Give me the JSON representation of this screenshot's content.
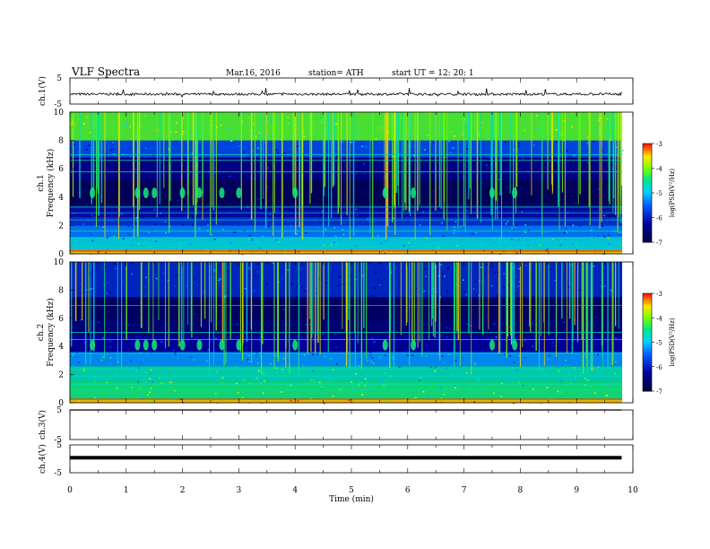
{
  "header": {
    "title": "VLF Spectra",
    "date": "Mar.16, 2016",
    "station": "station= ATH",
    "start": "start  UT =    12: 20: 1"
  },
  "colors": {
    "background": "#ffffff",
    "axis": "#000000",
    "spectrogram_low": "#000066",
    "spectrogram_mid": "#00c0ff",
    "spectrogram_high": "#c8ff00"
  },
  "chart_data": [
    {
      "type": "line",
      "panel": "ch1-waveform",
      "ylabel": "ch.1(V)",
      "ylim": [
        -5,
        5
      ],
      "y_ticks": [
        "5",
        "-5"
      ],
      "x": [
        0,
        1,
        2,
        3,
        4,
        5,
        6,
        7,
        8,
        9,
        9.8
      ],
      "values": [
        -1.2,
        -1.3,
        -1.1,
        -1.4,
        -1.0,
        -1.2,
        -1.3,
        -1.1,
        -1.2,
        -1.3,
        -1.4
      ]
    },
    {
      "type": "heatmap",
      "panel": "ch1-spectrogram",
      "ylabel_top": "ch.1",
      "ylabel": "Frequency (kHz)",
      "ylim": [
        0,
        10
      ],
      "y_ticks": [
        "0",
        "2",
        "4",
        "6",
        "8",
        "10"
      ],
      "colorbar": {
        "label": "log(PSD(V²/Hz)",
        "range": [
          -7,
          -3
        ],
        "ticks": [
          "-3",
          "-4",
          "-5",
          "-6",
          "-7"
        ]
      }
    },
    {
      "type": "heatmap",
      "panel": "ch2-spectrogram",
      "ylabel_top": "ch.2",
      "ylabel": "Frequency (kHz)",
      "ylim": [
        0,
        10
      ],
      "y_ticks": [
        "0",
        "2",
        "4",
        "6",
        "8",
        "10"
      ],
      "colorbar": {
        "label": "log(PSD(V²/Hz)",
        "range": [
          -7,
          -3
        ],
        "ticks": [
          "-3",
          "-4",
          "-5",
          "-6",
          "-7"
        ]
      }
    },
    {
      "type": "line",
      "panel": "ch3-waveform",
      "ylabel": "ch.3(V)",
      "ylim": [
        -5,
        5
      ],
      "y_ticks": [
        "5",
        "-5"
      ],
      "x": [
        0,
        9.8
      ],
      "values": [
        5,
        5
      ]
    },
    {
      "type": "line",
      "panel": "ch4-waveform",
      "ylabel": "ch.4(V)",
      "ylim": [
        -5,
        5
      ],
      "y_ticks": [
        "5",
        "-5"
      ],
      "x": [
        0,
        9.8
      ],
      "values": [
        0.4,
        0.4
      ]
    }
  ],
  "x_axis": {
    "label": "Time (min)",
    "xlim": [
      0,
      10
    ],
    "ticks": [
      "0",
      "1",
      "2",
      "3",
      "4",
      "5",
      "6",
      "7",
      "8",
      "9",
      "10"
    ]
  }
}
